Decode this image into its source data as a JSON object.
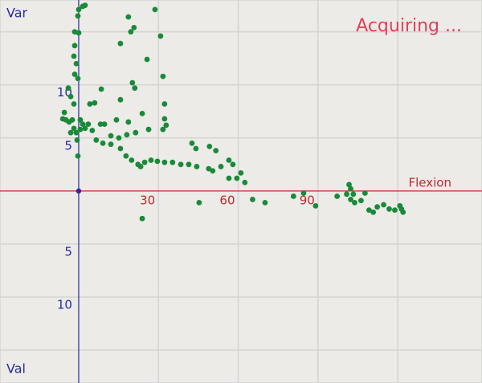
{
  "chart_data": {
    "type": "scatter",
    "status": "Acquiring ...",
    "y_label_top": "Var",
    "y_label_bottom": "Val",
    "x_label": "Flexion",
    "xlim": [
      -29.6,
      151.7
    ],
    "ylim": [
      -18.1,
      18.0
    ],
    "xticks": [
      30,
      60,
      90
    ],
    "yticks": [
      10,
      5,
      {
        "value": -5,
        "label": "5"
      },
      {
        "value": -10,
        "label": "10"
      }
    ],
    "xgrid": [
      30,
      60,
      90,
      120
    ],
    "ygrid": [
      15,
      10,
      5,
      -5,
      -10,
      -15
    ],
    "grid": true,
    "x_axis_color": "#c0282f",
    "y_axis_color": "#2a2aa0",
    "status_color": "#e0405a",
    "series": [
      {
        "color": "#1a8a3a",
        "x": [
          0,
          1.5,
          2.4,
          -0.3,
          -1.5,
          0,
          -1.5,
          -1.8,
          -0.9,
          -1.5,
          -0.3,
          -3.9,
          -3.0,
          -1.8,
          -5.4,
          -6.0,
          -4.8,
          -3.6,
          -2.4,
          -1.8,
          -3.0,
          -0.9,
          0.6,
          1.5,
          2.4,
          3.6,
          0.6,
          -0.3,
          -0.6,
          18.7,
          19.6,
          15.7,
          20.8,
          28.7,
          30.8,
          25.7,
          31.7,
          20.2,
          21.1,
          8.5,
          6.0,
          4.2,
          14.2,
          15.7,
          23.9,
          18.7,
          32.3,
          32.3,
          32.9,
          31.7,
          26.3,
          21.4,
          18.1,
          15.1,
          12.1,
          9.7,
          8.2,
          5.1,
          6.6,
          9.1,
          12.1,
          15.7,
          17.8,
          19.9,
          22.3,
          24.8,
          27.2,
          29.6,
          32.3,
          35.3,
          38.4,
          41.4,
          44.4,
          42.6,
          44.1,
          49.2,
          51.6,
          48.9,
          50.4,
          53.5,
          56.5,
          58.0,
          61.0,
          56.5,
          59.5,
          62.5,
          23.3,
          23.9,
          45.3,
          65.4,
          70.1,
          80.8,
          84.6,
          89.1,
          97.2,
          101.7,
          102.3,
          103.3,
          102.3,
          103.8,
          106.2,
          107.7,
          109.2,
          110.8,
          112.3,
          114.7,
          116.8,
          118.9,
          121.4,
          122.0,
          120.8,
          100.8
        ],
        "values": [
          17.1,
          17.4,
          17.5,
          16.5,
          15.0,
          14.9,
          13.7,
          12.7,
          12.0,
          11.0,
          10.6,
          9.7,
          8.9,
          8.2,
          7.4,
          6.8,
          6.7,
          6.5,
          6.7,
          5.9,
          5.5,
          5.5,
          6.7,
          6.3,
          5.9,
          6.3,
          5.8,
          3.3,
          4.8,
          16.4,
          15.0,
          13.9,
          15.4,
          17.1,
          14.6,
          12.4,
          10.8,
          10.2,
          9.7,
          9.6,
          8.3,
          8.2,
          6.7,
          8.6,
          7.3,
          6.5,
          8.2,
          6.8,
          6.2,
          5.8,
          5.8,
          5.5,
          5.3,
          5.0,
          5.2,
          6.3,
          6.3,
          5.7,
          4.8,
          4.5,
          4.4,
          4.0,
          3.3,
          2.9,
          2.5,
          2.7,
          2.9,
          2.8,
          2.7,
          2.7,
          2.5,
          2.5,
          2.3,
          4.5,
          4.0,
          4.2,
          3.8,
          2.1,
          1.9,
          2.3,
          2.9,
          2.5,
          1.7,
          1.2,
          1.2,
          0.8,
          2.3,
          -2.6,
          -1.1,
          -0.8,
          -1.1,
          -0.5,
          -0.2,
          -1.4,
          -0.5,
          0.6,
          0.2,
          -0.3,
          -0.8,
          -1.1,
          -0.9,
          -0.2,
          -1.8,
          -2.0,
          -1.5,
          -1.3,
          -1.7,
          -1.8,
          -1.7,
          -2.0,
          -1.4,
          -0.3
        ]
      }
    ]
  }
}
